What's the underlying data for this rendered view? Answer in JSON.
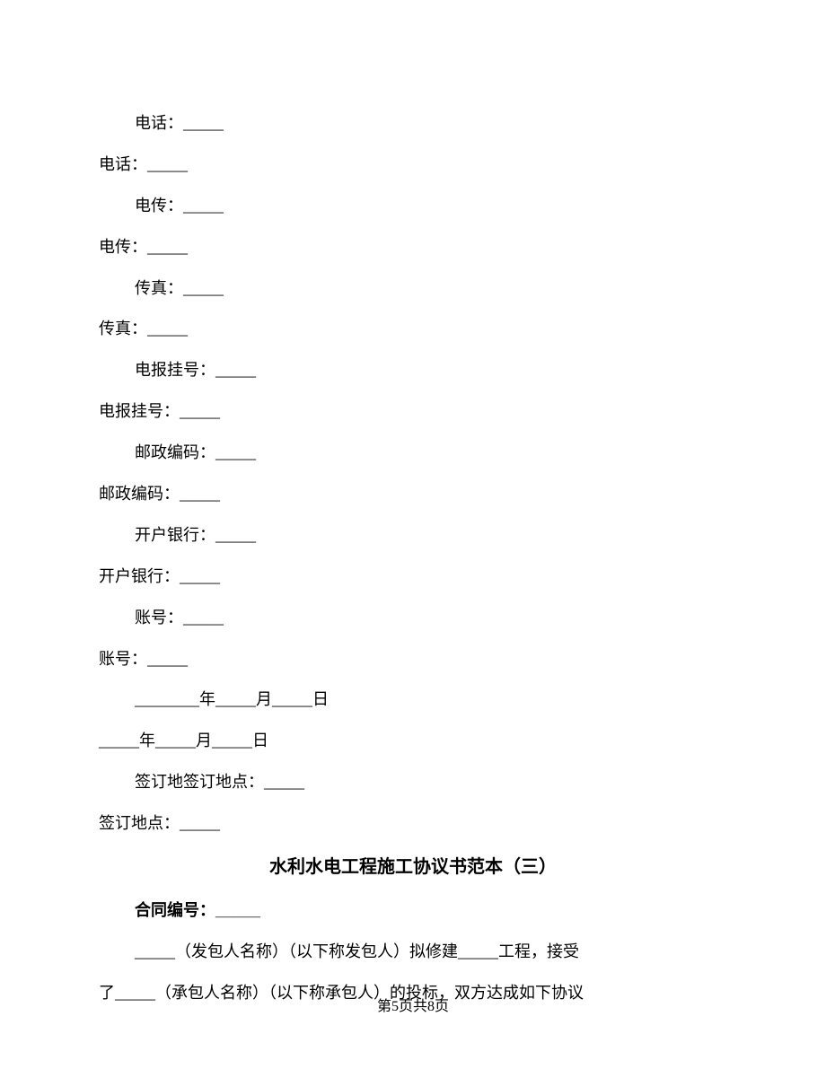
{
  "lines": [
    {
      "text": "电话：_____",
      "class": "indented"
    },
    {
      "text": "电话：_____",
      "class": "no-indent"
    },
    {
      "text": "电传：_____",
      "class": "indented"
    },
    {
      "text": "电传：_____",
      "class": "no-indent"
    },
    {
      "text": "传真：_____",
      "class": "indented"
    },
    {
      "text": "传真：_____",
      "class": "no-indent"
    },
    {
      "text": "电报挂号：_____",
      "class": "indented"
    },
    {
      "text": "电报挂号：_____",
      "class": "no-indent"
    },
    {
      "text": "邮政编码：_____",
      "class": "indented"
    },
    {
      "text": "邮政编码：_____",
      "class": "no-indent"
    },
    {
      "text": "开户银行：_____",
      "class": "indented"
    },
    {
      "text": "开户银行：_____",
      "class": "no-indent"
    },
    {
      "text": "账号：_____",
      "class": "indented"
    },
    {
      "text": "账号：_____",
      "class": "no-indent"
    },
    {
      "text": "________年_____月_____日",
      "class": "indented"
    },
    {
      "text": "_____年_____月_____日",
      "class": "no-indent"
    },
    {
      "text": "签订地签订地点：_____",
      "class": "indented"
    },
    {
      "text": "签订地点：_____",
      "class": "no-indent"
    }
  ],
  "title": "水利水电工程施工协议书范本（三）",
  "contract_number_label": "合同编号：_____",
  "body1": "_____（发包人名称）（以下称发包人）拟修建_____工程，接受",
  "body2": "了_____（承包人名称）（以下称承包人）的投标，双方达成如下协议",
  "footer": "第5页共8页",
  "colors": {
    "background": "#ffffff",
    "text": "#000000"
  },
  "typography": {
    "body_fontsize": 18,
    "title_fontsize": 20,
    "footer_fontsize": 16,
    "line_height": 2.55
  }
}
